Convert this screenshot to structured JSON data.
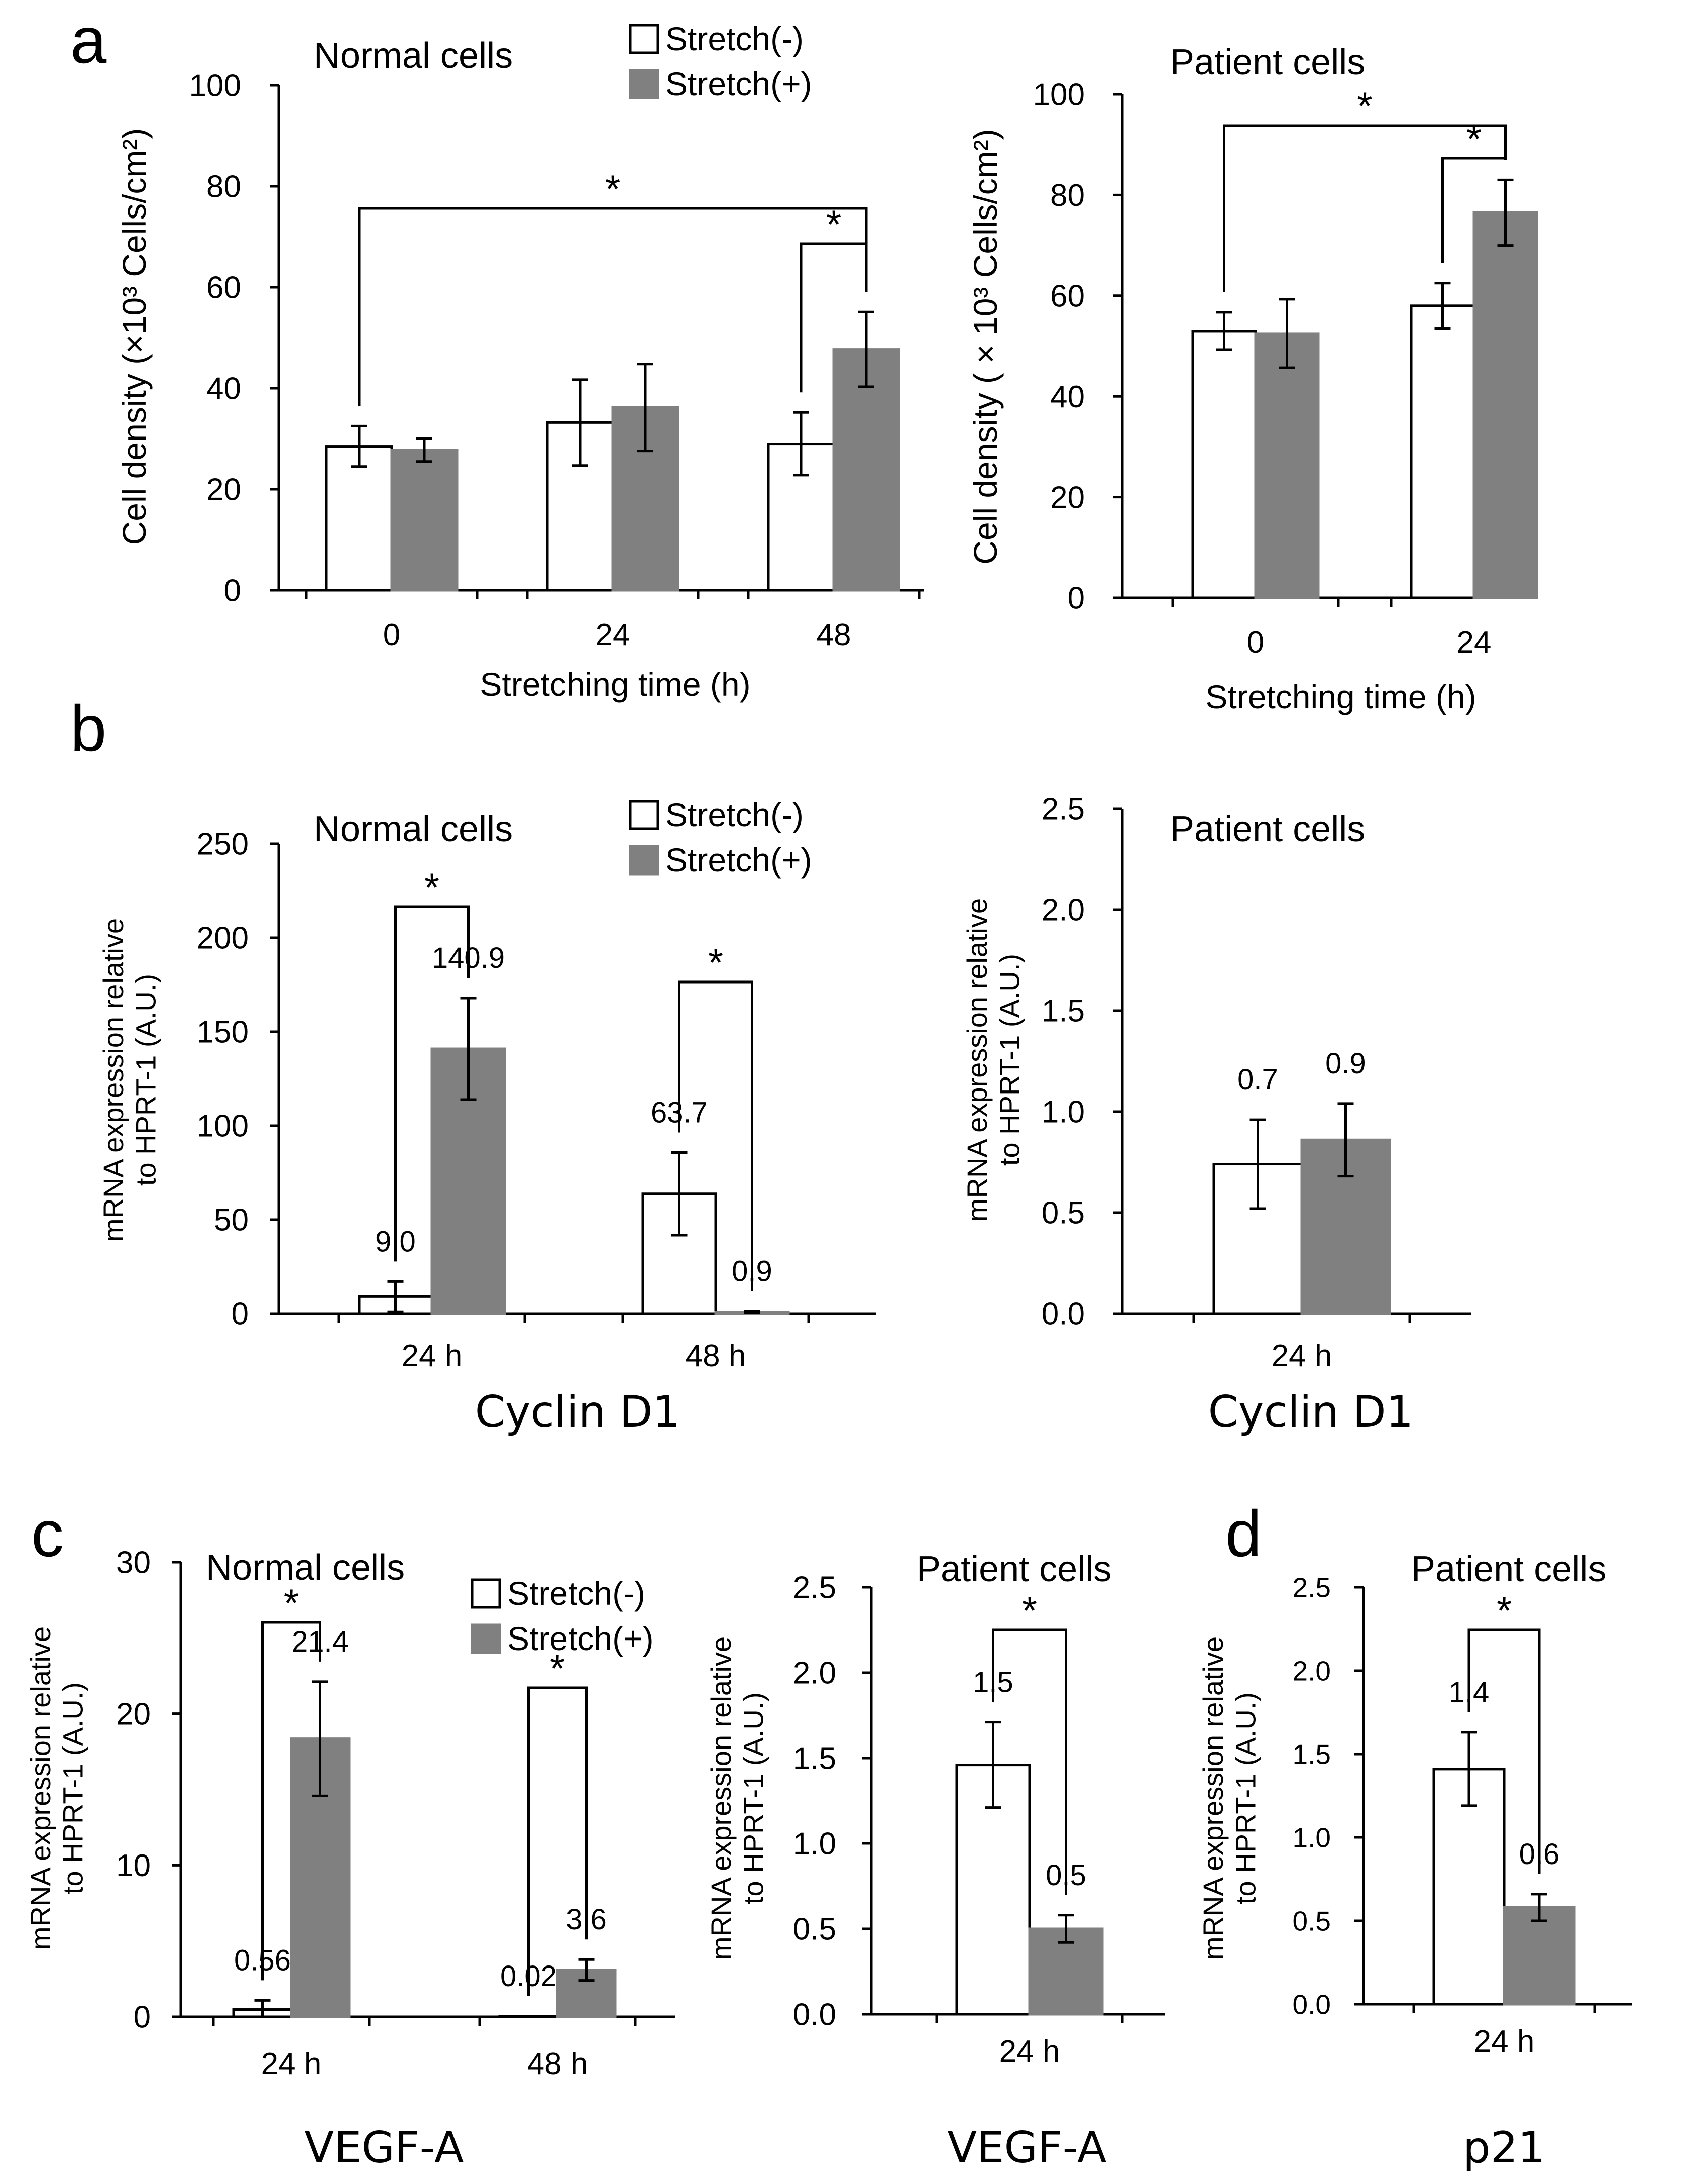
{
  "panel_letters": [
    "a",
    "b",
    "c",
    "d"
  ],
  "legend": {
    "minus": "Stretch(-)",
    "plus": "Stretch(+)",
    "colors": {
      "minus": "#ffffff",
      "plus": "#808080"
    }
  },
  "chart_data": [
    {
      "id": "a-normal",
      "type": "bar",
      "title": "Normal cells",
      "xlabel": "Stretching time (h)",
      "ylabel": "Cell density (×10³ Cells/cm²)",
      "categories": [
        "0",
        "24",
        "48"
      ],
      "series": [
        {
          "name": "Stretch(-)",
          "values": [
            28.5,
            33.2,
            29.0
          ],
          "errors": [
            4.0,
            8.5,
            6.2
          ]
        },
        {
          "name": "Stretch(+)",
          "values": [
            27.8,
            36.2,
            47.7
          ],
          "errors": [
            2.3,
            8.6,
            7.4
          ]
        }
      ],
      "ylim": [
        0,
        100
      ],
      "yticks": [
        "0",
        "20",
        "40",
        "60",
        "80",
        "100"
      ],
      "value_labels": [],
      "significance": [
        {
          "from": [
            0,
            0
          ],
          "to": [
            2,
            1
          ],
          "label": "*"
        },
        {
          "from": [
            2,
            0
          ],
          "to": [
            2,
            1
          ],
          "label": "*"
        }
      ]
    },
    {
      "id": "a-patient",
      "type": "bar",
      "title": "Patient cells",
      "xlabel": "Stretching time (h)",
      "ylabel": "Cell density ( × 10³ Cells/cm²)",
      "categories": [
        "0",
        "24"
      ],
      "series": [
        {
          "name": "Stretch(-)",
          "values": [
            53.0,
            58.0
          ],
          "errors": [
            3.7,
            4.5
          ]
        },
        {
          "name": "Stretch(+)",
          "values": [
            52.5,
            76.5
          ],
          "errors": [
            6.8,
            6.5
          ]
        }
      ],
      "ylim": [
        0,
        100
      ],
      "yticks": [
        "0",
        "20",
        "40",
        "60",
        "80",
        "100"
      ],
      "value_labels": [],
      "significance": [
        {
          "from": [
            0,
            0
          ],
          "to": [
            1,
            1
          ],
          "label": "*"
        },
        {
          "from": [
            1,
            0
          ],
          "to": [
            1,
            1
          ],
          "label": "*"
        }
      ]
    },
    {
      "id": "b-normal",
      "type": "bar",
      "title": "Normal cells",
      "xlabel": "Cyclin D1",
      "ylabel": "mRNA expression relative to HPRT-1 (A.U.)",
      "categories": [
        "24 h",
        "48 h"
      ],
      "series": [
        {
          "name": "Stretch(-)",
          "values": [
            9.0,
            63.7
          ],
          "errors": [
            8.0,
            22.0
          ]
        },
        {
          "name": "Stretch(+)",
          "values": [
            140.9,
            0.9
          ],
          "errors": [
            27.0,
            0.3
          ]
        }
      ],
      "ylim": [
        0,
        250
      ],
      "yticks": [
        "0",
        "50",
        "100",
        "150",
        "200",
        "250"
      ],
      "value_labels": [
        [
          "9.0",
          "63.7"
        ],
        [
          "140.9",
          "0.9"
        ]
      ],
      "significance": [
        {
          "from": [
            0,
            0
          ],
          "to": [
            0,
            1
          ],
          "label": "*"
        },
        {
          "from": [
            1,
            0
          ],
          "to": [
            1,
            1
          ],
          "label": "*"
        }
      ]
    },
    {
      "id": "b-patient",
      "type": "bar",
      "title": "Patient cells",
      "xlabel": "Cyclin D1",
      "ylabel": "mRNA expression relative to HPRT-1 (A.U.)",
      "categories": [
        "24 h"
      ],
      "series": [
        {
          "name": "Stretch(-)",
          "values": [
            0.74
          ],
          "errors": [
            0.22
          ]
        },
        {
          "name": "Stretch(+)",
          "values": [
            0.86
          ],
          "errors": [
            0.18
          ]
        }
      ],
      "ylim": [
        0,
        2.5
      ],
      "yticks": [
        "0.0",
        "0.5",
        "1.0",
        "1.5",
        "2.0",
        "2.5"
      ],
      "value_labels": [
        [
          "0.7"
        ],
        [
          "0.9"
        ]
      ],
      "significance": []
    },
    {
      "id": "c-normal",
      "type": "bar",
      "title": "Normal cells",
      "xlabel": "VEGF-A",
      "ylabel": "mRNA expression relative to HPRT-1 (A.U.)",
      "categories": [
        "24 h",
        "48 h"
      ],
      "series": [
        {
          "name": "Stretch(-)",
          "values": [
            0.56,
            0.02
          ],
          "errors": [
            0.7,
            0.02
          ]
        },
        {
          "name": "Stretch(+)",
          "values": [
            21.4,
            3.6
          ],
          "errors": [
            4.4,
            0.8
          ]
        }
      ],
      "ylim": [
        0,
        35
      ],
      "yticks": [
        "0",
        "10",
        "20",
        "30"
      ],
      "value_labels": [
        [
          "0.56",
          "0.02"
        ],
        [
          "21.4",
          "3.6"
        ]
      ],
      "significance": [
        {
          "from": [
            0,
            0
          ],
          "to": [
            0,
            1
          ],
          "label": "*"
        },
        {
          "from": [
            1,
            0
          ],
          "to": [
            1,
            1
          ],
          "label": "*"
        }
      ]
    },
    {
      "id": "c-patient",
      "type": "bar",
      "title": "Patient cells",
      "xlabel": "VEGF-A",
      "ylabel": "mRNA expression relative to HPRT-1 (A.U.)",
      "categories": [
        "24 h"
      ],
      "series": [
        {
          "name": "Stretch(-)",
          "values": [
            1.46
          ],
          "errors": [
            0.25
          ]
        },
        {
          "name": "Stretch(+)",
          "values": [
            0.5
          ],
          "errors": [
            0.08
          ]
        }
      ],
      "ylim": [
        0,
        2.5
      ],
      "yticks": [
        "0.0",
        "0.5",
        "1.0",
        "1.5",
        "2.0",
        "2.5"
      ],
      "value_labels": [
        [
          "1.5"
        ],
        [
          "0.5"
        ]
      ],
      "significance": [
        {
          "from": [
            0,
            0
          ],
          "to": [
            0,
            1
          ],
          "label": "*"
        }
      ]
    },
    {
      "id": "d-patient",
      "type": "bar",
      "title": "Patient cells",
      "xlabel": "p21",
      "ylabel": "mRNA expression relative to HPRT-1 (A.U.)",
      "categories": [
        "24 h"
      ],
      "series": [
        {
          "name": "Stretch(-)",
          "values": [
            1.41
          ],
          "errors": [
            0.22
          ]
        },
        {
          "name": "Stretch(+)",
          "values": [
            0.58
          ],
          "errors": [
            0.08
          ]
        }
      ],
      "ylim": [
        0,
        2.5
      ],
      "yticks": [
        "0.0",
        "0.5",
        "1.0",
        "1.5",
        "2.0",
        "2.5"
      ],
      "value_labels": [
        [
          "1.4"
        ],
        [
          "0.6"
        ]
      ],
      "significance": [
        {
          "from": [
            0,
            0
          ],
          "to": [
            0,
            1
          ],
          "label": "*"
        }
      ]
    }
  ]
}
